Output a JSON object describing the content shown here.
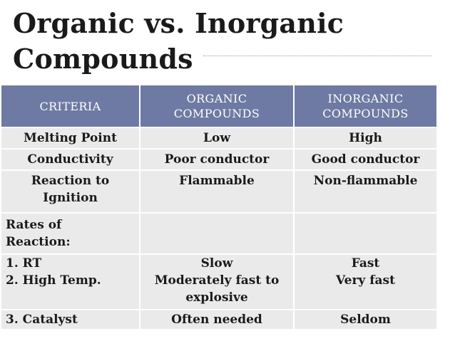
{
  "title": {
    "line1": "Organic vs. Inorganic",
    "line2": "Compounds"
  },
  "table": {
    "headers": {
      "criteria": "CRITERIA",
      "organic_line1": "ORGANIC",
      "organic_line2": "COMPOUNDS",
      "inorganic_line1": "INORGANIC",
      "inorganic_line2": "COMPOUNDS"
    },
    "rows": {
      "melting_point": {
        "criteria": "Melting Point",
        "organic": "Low",
        "inorganic": "High"
      },
      "conductivity": {
        "criteria": "Conductivity",
        "organic": "Poor conductor",
        "inorganic": "Good conductor"
      },
      "reaction_to_ignition": {
        "criteria_line1": "Reaction to",
        "criteria_line2": "Ignition",
        "organic": "Flammable",
        "inorganic": "Non-flammable"
      },
      "rates_of_reaction": {
        "criteria_line1": "Rates of",
        "criteria_line2": "Reaction:",
        "organic": "",
        "inorganic": ""
      },
      "rt_high_temp": {
        "criteria_line1": "1.  RT",
        "criteria_line2": "2.  High Temp.",
        "organic_line1": "Slow",
        "organic_line2": "Moderately fast to",
        "organic_line3": "explosive",
        "inorganic_line1": "Fast",
        "inorganic_line2": "Very fast"
      },
      "catalyst": {
        "criteria": "3.  Catalyst",
        "organic": "Often needed",
        "inorganic": "Seldom"
      }
    }
  },
  "colors": {
    "header_bg": "#6e7aa3",
    "cell_bg": "#eaeaea",
    "text": "#1a1a1a"
  }
}
